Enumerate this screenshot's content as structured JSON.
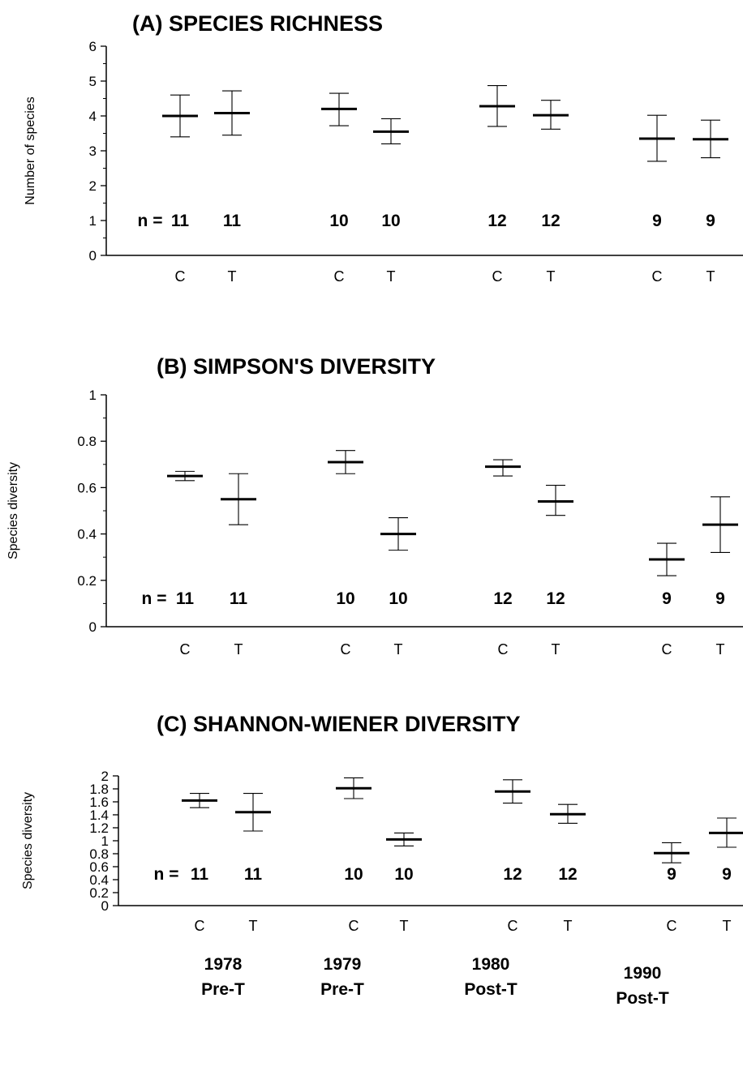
{
  "chart_data": [
    {
      "type": "errorbar",
      "title": "(A)  SPECIES RICHNESS",
      "ylabel": "Number of species",
      "ylim": [
        0,
        6
      ],
      "yticks": [
        "0",
        "1",
        "2",
        "3",
        "4",
        "5",
        "6"
      ],
      "n_prefix": "n =",
      "n_values": [
        "11",
        "11",
        "10",
        "10",
        "12",
        "12",
        "9",
        "9"
      ],
      "treatments": [
        "C",
        "T",
        "C",
        "T",
        "C",
        "T",
        "C",
        "T"
      ],
      "mean": [
        4.0,
        4.08,
        4.2,
        3.55,
        4.28,
        4.02,
        3.35,
        3.33
      ],
      "lower": [
        3.4,
        3.45,
        3.72,
        3.2,
        3.7,
        3.62,
        2.7,
        2.8
      ],
      "upper": [
        4.6,
        4.72,
        4.65,
        3.92,
        4.87,
        4.45,
        4.02,
        3.88
      ]
    },
    {
      "type": "errorbar",
      "title": "(B)  SIMPSON'S DIVERSITY",
      "ylabel": "Species diversity",
      "ylim": [
        0,
        1
      ],
      "yticks": [
        "0",
        "0.2",
        "0.4",
        "0.6",
        "0.8",
        "1"
      ],
      "n_prefix": "n =",
      "n_values": [
        "11",
        "11",
        "10",
        "10",
        "12",
        "12",
        "9",
        "9"
      ],
      "treatments": [
        "C",
        "T",
        "C",
        "T",
        "C",
        "T",
        "C",
        "T"
      ],
      "mean": [
        0.65,
        0.55,
        0.71,
        0.4,
        0.69,
        0.54,
        0.29,
        0.44
      ],
      "lower": [
        0.63,
        0.44,
        0.66,
        0.33,
        0.65,
        0.48,
        0.22,
        0.32
      ],
      "upper": [
        0.67,
        0.66,
        0.76,
        0.47,
        0.72,
        0.61,
        0.36,
        0.56
      ]
    },
    {
      "type": "errorbar",
      "title": "(C)  SHANNON-WIENER DIVERSITY",
      "ylabel": "Species diversity",
      "ylim": [
        0,
        2
      ],
      "yticks": [
        "0",
        "0.2",
        "0.4",
        "0.6",
        "0.8",
        "1",
        "1.2",
        "1.4",
        "1.6",
        "1.8",
        "2"
      ],
      "n_prefix": "n =",
      "n_values": [
        "11",
        "11",
        "10",
        "10",
        "12",
        "12",
        "9",
        "9"
      ],
      "treatments": [
        "C",
        "T",
        "C",
        "T",
        "C",
        "T",
        "C",
        "T"
      ],
      "mean": [
        1.62,
        1.44,
        1.81,
        1.02,
        1.76,
        1.41,
        0.81,
        1.12
      ],
      "lower": [
        1.51,
        1.15,
        1.65,
        0.92,
        1.58,
        1.27,
        0.66,
        0.9
      ],
      "upper": [
        1.73,
        1.73,
        1.97,
        1.12,
        1.94,
        1.56,
        0.97,
        1.35
      ]
    }
  ],
  "groups": [
    {
      "year": "1978",
      "phase": "Pre-T"
    },
    {
      "year": "1979",
      "phase": "Pre-T"
    },
    {
      "year": "1980",
      "phase": "Post-T"
    },
    {
      "year": "1990",
      "phase": "Post-T"
    }
  ]
}
